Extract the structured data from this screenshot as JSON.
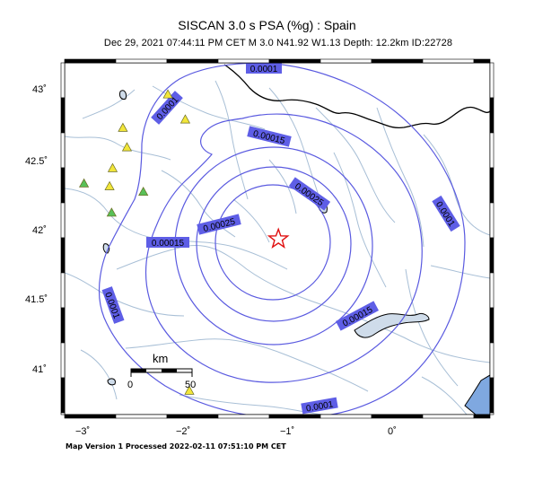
{
  "map": {
    "title": "SISCAN 3.0 s PSA (%g) : Spain",
    "subtitle": "Dec 29, 2021 07:44:11 PM CET    M 3.0    N41.92 W1.13    Depth: 12.2km    ID:22728",
    "footer": "Map Version 1 Processed 2022-02-11 07:51:10 PM CET",
    "lat_ticks": [
      "43˚",
      "42.5˚",
      "42˚",
      "41.5˚",
      "41˚"
    ],
    "lon_ticks": [
      "−3˚",
      "−2˚",
      "−1˚",
      "0˚"
    ],
    "scalebar": {
      "unit": "km",
      "start": "0",
      "end": "50"
    },
    "contour_labels": [
      "0.0001",
      "0.0001",
      "0.00015",
      "0.00025",
      "0.00025",
      "0.0001",
      "0.00015",
      "0.00015",
      "0.0001",
      "0.0001"
    ],
    "colors": {
      "contour": "#5a5ae0",
      "label_bg": "#5e5ee6",
      "river": "#a8bfd6",
      "border": "#000000",
      "sea": "#7fa8e0",
      "station_yellow": "#f2e63a",
      "station_green": "#58c058",
      "epicenter": "#e01010"
    },
    "stations": [
      {
        "color": "yellow",
        "lon": -2.04,
        "lat": 42.78
      },
      {
        "color": "yellow",
        "lon": -2.21,
        "lat": 42.96
      },
      {
        "color": "yellow",
        "lon": -2.61,
        "lat": 42.58
      },
      {
        "color": "yellow",
        "lon": -2.65,
        "lat": 42.72
      },
      {
        "color": "yellow",
        "lon": -2.75,
        "lat": 42.43
      },
      {
        "color": "yellow",
        "lon": -2.78,
        "lat": 42.3
      },
      {
        "color": "green",
        "lon": -3.03,
        "lat": 42.32
      },
      {
        "color": "green",
        "lon": -2.45,
        "lat": 42.26
      },
      {
        "color": "green",
        "lon": -2.76,
        "lat": 42.11
      },
      {
        "color": "yellow",
        "lon": -2.0,
        "lat": 40.83
      }
    ],
    "epicenter": {
      "lon": -1.13,
      "lat": 41.92
    }
  }
}
